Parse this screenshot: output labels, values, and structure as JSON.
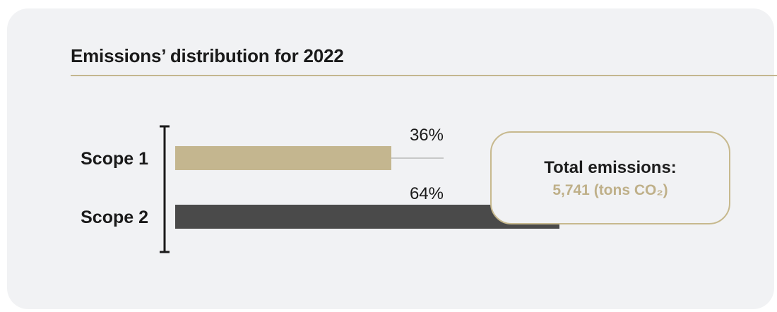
{
  "title": "Emissions’ distribution for 2022",
  "total": {
    "label": "Total emissions:",
    "value": "5,741 (tons CO₂)"
  },
  "colors": {
    "panel": "#f1f2f4",
    "accent": "#c4b68f",
    "scope1": "#c4b68f",
    "scope2": "#4a4a4a",
    "text": "#1a1a1a"
  },
  "chart_data": {
    "type": "bar",
    "orientation": "horizontal",
    "categories": [
      "Scope 1",
      "Scope 2"
    ],
    "values": [
      36,
      64
    ],
    "value_labels": [
      "36%",
      "64%"
    ],
    "unit": "%",
    "xlim": [
      0,
      72
    ],
    "grid": false,
    "legend": "none"
  }
}
